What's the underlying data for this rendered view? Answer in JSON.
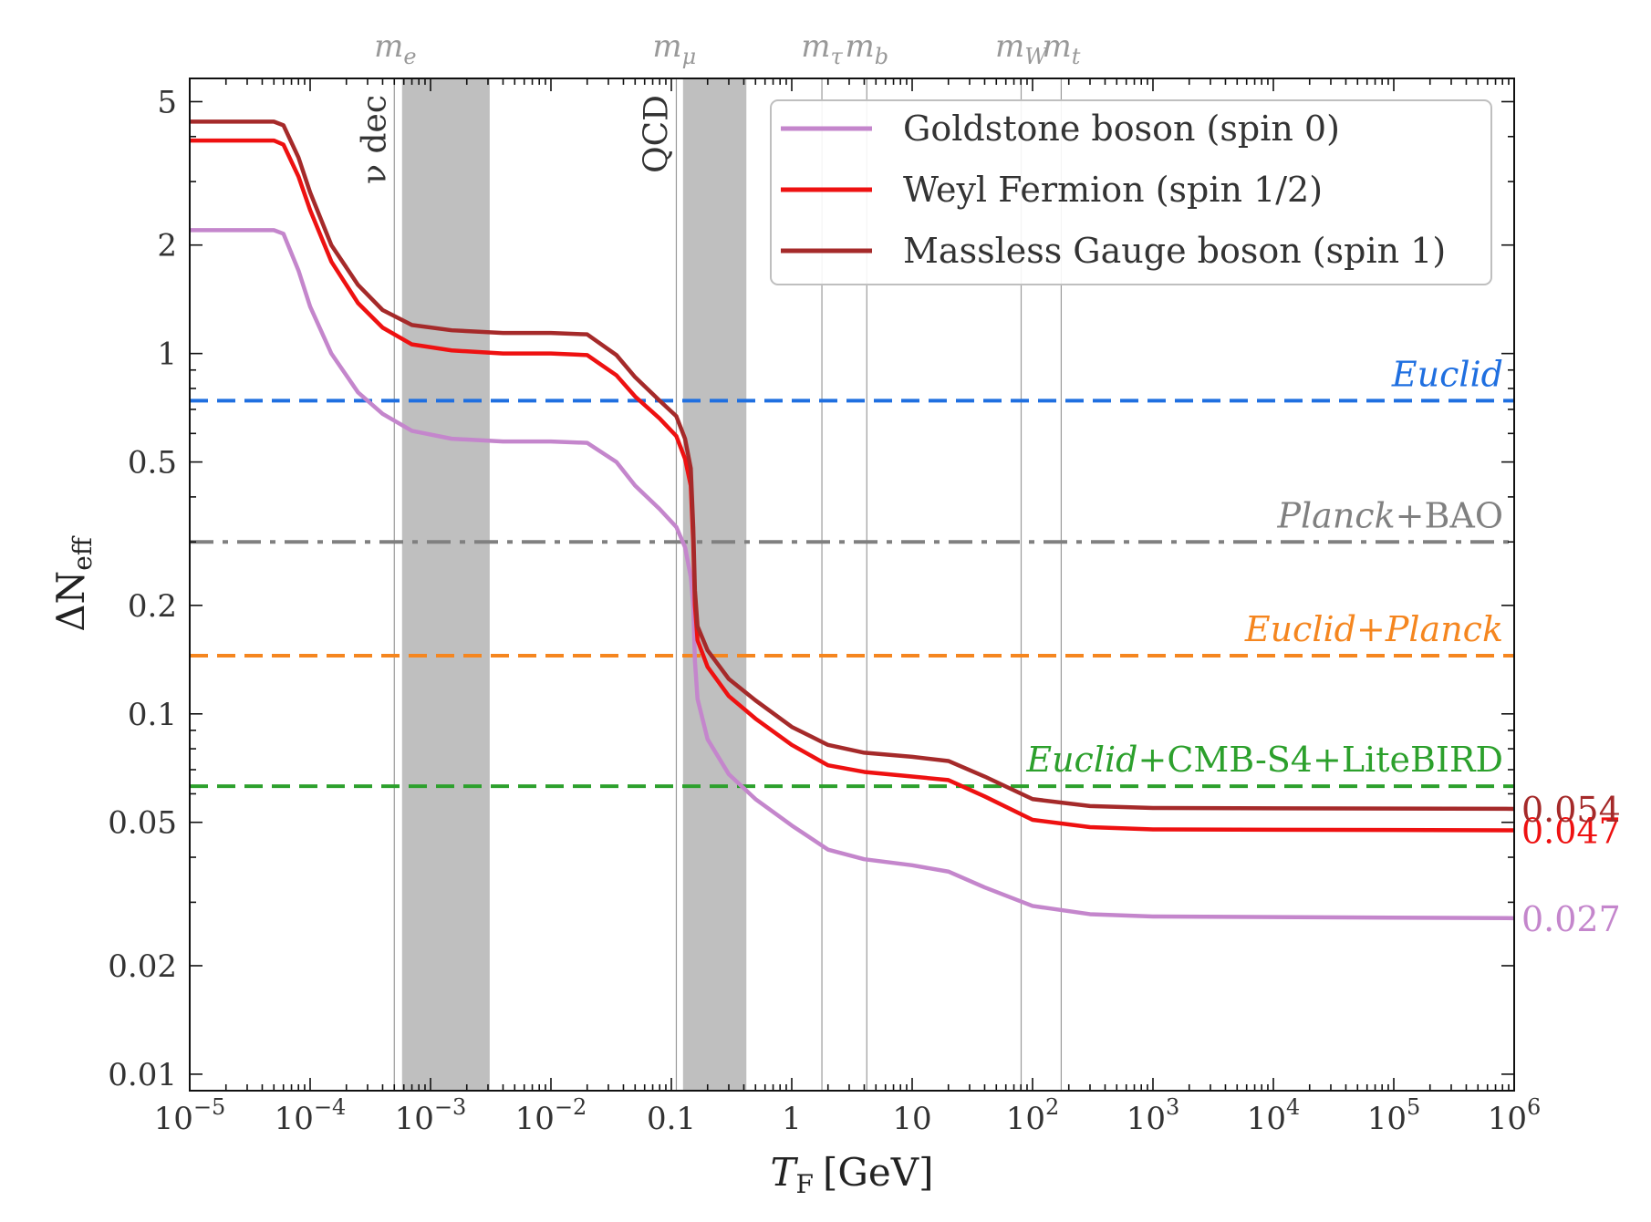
{
  "chart_data": {
    "type": "line",
    "xscale": "log",
    "yscale": "log",
    "xlim": [
      1e-05,
      1000000.0
    ],
    "ylim": [
      0.009,
      5.8
    ],
    "xlabel": {
      "main": "T",
      "sub": "F",
      "unit": "[GeV]"
    },
    "ylabel": {
      "main": "ΔN",
      "sub": "eff"
    },
    "x_ticks": [
      {
        "value": 1e-05,
        "base": "10",
        "exp": "−5"
      },
      {
        "value": 0.0001,
        "base": "10",
        "exp": "−4"
      },
      {
        "value": 0.001,
        "base": "10",
        "exp": "−3"
      },
      {
        "value": 0.01,
        "base": "10",
        "exp": "−2"
      },
      {
        "value": 0.1,
        "base": "0.1",
        "exp": ""
      },
      {
        "value": 1,
        "base": "1",
        "exp": ""
      },
      {
        "value": 10,
        "base": "10",
        "exp": ""
      },
      {
        "value": 100,
        "base": "10",
        "exp": "2"
      },
      {
        "value": 1000,
        "base": "10",
        "exp": "3"
      },
      {
        "value": 10000,
        "base": "10",
        "exp": "4"
      },
      {
        "value": 100000,
        "base": "10",
        "exp": "5"
      },
      {
        "value": 1000000,
        "base": "10",
        "exp": "6"
      }
    ],
    "y_ticks": [
      {
        "value": 0.01,
        "label": "0.01"
      },
      {
        "value": 0.02,
        "label": "0.02"
      },
      {
        "value": 0.05,
        "label": "0.05"
      },
      {
        "value": 0.1,
        "label": "0.1"
      },
      {
        "value": 0.2,
        "label": "0.2"
      },
      {
        "value": 0.5,
        "label": "0.5"
      },
      {
        "value": 1,
        "label": "1"
      },
      {
        "value": 2,
        "label": "2"
      },
      {
        "value": 5,
        "label": "5"
      }
    ],
    "bands": [
      {
        "name": "nu-dec",
        "x0": 0.00058,
        "x1": 0.0031,
        "label": "ν dec",
        "line_x": 0.0005
      },
      {
        "name": "qcd",
        "x0": 0.125,
        "x1": 0.42,
        "label": "QCD",
        "line_x": 0.11
      }
    ],
    "mass_lines": [
      {
        "name": "m-e",
        "x": 0.00051,
        "label": "m",
        "sub": "e",
        "show_line": false
      },
      {
        "name": "m-mu",
        "x": 0.106,
        "label": "m",
        "sub": "μ",
        "show_line": false
      },
      {
        "name": "m-tau",
        "x": 1.78,
        "label": "m",
        "sub": "τ",
        "show_line": true
      },
      {
        "name": "m-b",
        "x": 4.2,
        "label": "m",
        "sub": "b",
        "show_line": true
      },
      {
        "name": "m-W",
        "x": 80.4,
        "label": "m",
        "sub": "W",
        "show_line": true
      },
      {
        "name": "m-t",
        "x": 173,
        "label": "m",
        "sub": "t",
        "show_line": true
      }
    ],
    "hlines": [
      {
        "name": "euclid",
        "y": 0.74,
        "color": "#1f6fe0",
        "dash": "dashed",
        "label_parts": [
          {
            "text": "Euclid",
            "italic": true
          }
        ]
      },
      {
        "name": "planck-bao",
        "y": 0.3,
        "color": "#808080",
        "dash": "dashdot",
        "label_parts": [
          {
            "text": "Planck",
            "italic": true
          },
          {
            "text": "+BAO",
            "italic": false
          }
        ]
      },
      {
        "name": "euclid-planck",
        "y": 0.145,
        "color": "#f5861f",
        "dash": "dashed",
        "label_parts": [
          {
            "text": "Euclid",
            "italic": true
          },
          {
            "text": "+",
            "italic": false
          },
          {
            "text": "Planck",
            "italic": true
          }
        ]
      },
      {
        "name": "euclid-cmb-s4-litebird",
        "y": 0.063,
        "color": "#2ca02c",
        "dash": "dashed",
        "label_parts": [
          {
            "text": "Euclid",
            "italic": true
          },
          {
            "text": "+CMB-S4+LiteBIRD",
            "italic": false
          }
        ]
      }
    ],
    "series": [
      {
        "name": "Goldstone boson (spin 0)",
        "color": "#c486cc",
        "end_label": "0.027",
        "points": [
          [
            1e-05,
            2.2
          ],
          [
            5e-05,
            2.2
          ],
          [
            6e-05,
            2.15
          ],
          [
            8e-05,
            1.7
          ],
          [
            0.0001,
            1.35
          ],
          [
            0.00015,
            1.0
          ],
          [
            0.00025,
            0.78
          ],
          [
            0.0004,
            0.68
          ],
          [
            0.0007,
            0.61
          ],
          [
            0.0015,
            0.58
          ],
          [
            0.004,
            0.57
          ],
          [
            0.01,
            0.57
          ],
          [
            0.02,
            0.565
          ],
          [
            0.035,
            0.5
          ],
          [
            0.05,
            0.43
          ],
          [
            0.08,
            0.37
          ],
          [
            0.11,
            0.33
          ],
          [
            0.13,
            0.29
          ],
          [
            0.145,
            0.24
          ],
          [
            0.152,
            0.2
          ],
          [
            0.157,
            0.14
          ],
          [
            0.165,
            0.11
          ],
          [
            0.2,
            0.085
          ],
          [
            0.3,
            0.068
          ],
          [
            0.5,
            0.058
          ],
          [
            1,
            0.049
          ],
          [
            2,
            0.042
          ],
          [
            4,
            0.0395
          ],
          [
            10,
            0.038
          ],
          [
            20,
            0.0365
          ],
          [
            40,
            0.033
          ],
          [
            100,
            0.0293
          ],
          [
            300,
            0.0278
          ],
          [
            1000,
            0.0274
          ],
          [
            1000000.0,
            0.0271
          ]
        ]
      },
      {
        "name": "Weyl Fermion (spin 1/2)",
        "color": "#ee1111",
        "end_label": "0.047",
        "points": [
          [
            1e-05,
            3.9
          ],
          [
            5e-05,
            3.9
          ],
          [
            6e-05,
            3.8
          ],
          [
            8e-05,
            3.1
          ],
          [
            0.0001,
            2.5
          ],
          [
            0.00015,
            1.8
          ],
          [
            0.00025,
            1.38
          ],
          [
            0.0004,
            1.18
          ],
          [
            0.0007,
            1.06
          ],
          [
            0.0015,
            1.02
          ],
          [
            0.004,
            1.0
          ],
          [
            0.01,
            1.0
          ],
          [
            0.02,
            0.99
          ],
          [
            0.035,
            0.87
          ],
          [
            0.05,
            0.76
          ],
          [
            0.08,
            0.66
          ],
          [
            0.11,
            0.59
          ],
          [
            0.13,
            0.51
          ],
          [
            0.145,
            0.43
          ],
          [
            0.152,
            0.3
          ],
          [
            0.157,
            0.2
          ],
          [
            0.165,
            0.16
          ],
          [
            0.2,
            0.135
          ],
          [
            0.3,
            0.112
          ],
          [
            0.5,
            0.097
          ],
          [
            1,
            0.082
          ],
          [
            2,
            0.072
          ],
          [
            4,
            0.069
          ],
          [
            10,
            0.067
          ],
          [
            20,
            0.0655
          ],
          [
            40,
            0.059
          ],
          [
            100,
            0.0508
          ],
          [
            300,
            0.0485
          ],
          [
            1000,
            0.0478
          ],
          [
            1000000.0,
            0.0475
          ]
        ]
      },
      {
        "name": "Massless Gauge boson (spin 1)",
        "color": "#a52a2a",
        "end_label": "0.054",
        "points": [
          [
            1e-05,
            4.4
          ],
          [
            5e-05,
            4.4
          ],
          [
            6e-05,
            4.3
          ],
          [
            8e-05,
            3.5
          ],
          [
            0.0001,
            2.8
          ],
          [
            0.00015,
            2.0
          ],
          [
            0.00025,
            1.55
          ],
          [
            0.0004,
            1.32
          ],
          [
            0.0007,
            1.2
          ],
          [
            0.0015,
            1.16
          ],
          [
            0.004,
            1.14
          ],
          [
            0.01,
            1.14
          ],
          [
            0.02,
            1.13
          ],
          [
            0.035,
            0.99
          ],
          [
            0.05,
            0.86
          ],
          [
            0.08,
            0.74
          ],
          [
            0.11,
            0.67
          ],
          [
            0.13,
            0.58
          ],
          [
            0.145,
            0.48
          ],
          [
            0.152,
            0.33
          ],
          [
            0.157,
            0.22
          ],
          [
            0.165,
            0.175
          ],
          [
            0.2,
            0.15
          ],
          [
            0.3,
            0.125
          ],
          [
            0.5,
            0.109
          ],
          [
            1,
            0.092
          ],
          [
            2,
            0.082
          ],
          [
            4,
            0.078
          ],
          [
            10,
            0.076
          ],
          [
            20,
            0.074
          ],
          [
            40,
            0.067
          ],
          [
            100,
            0.058
          ],
          [
            300,
            0.0555
          ],
          [
            1000,
            0.0548
          ],
          [
            1000000.0,
            0.0545
          ]
        ]
      }
    ],
    "legend": {
      "position": "top-right"
    }
  }
}
